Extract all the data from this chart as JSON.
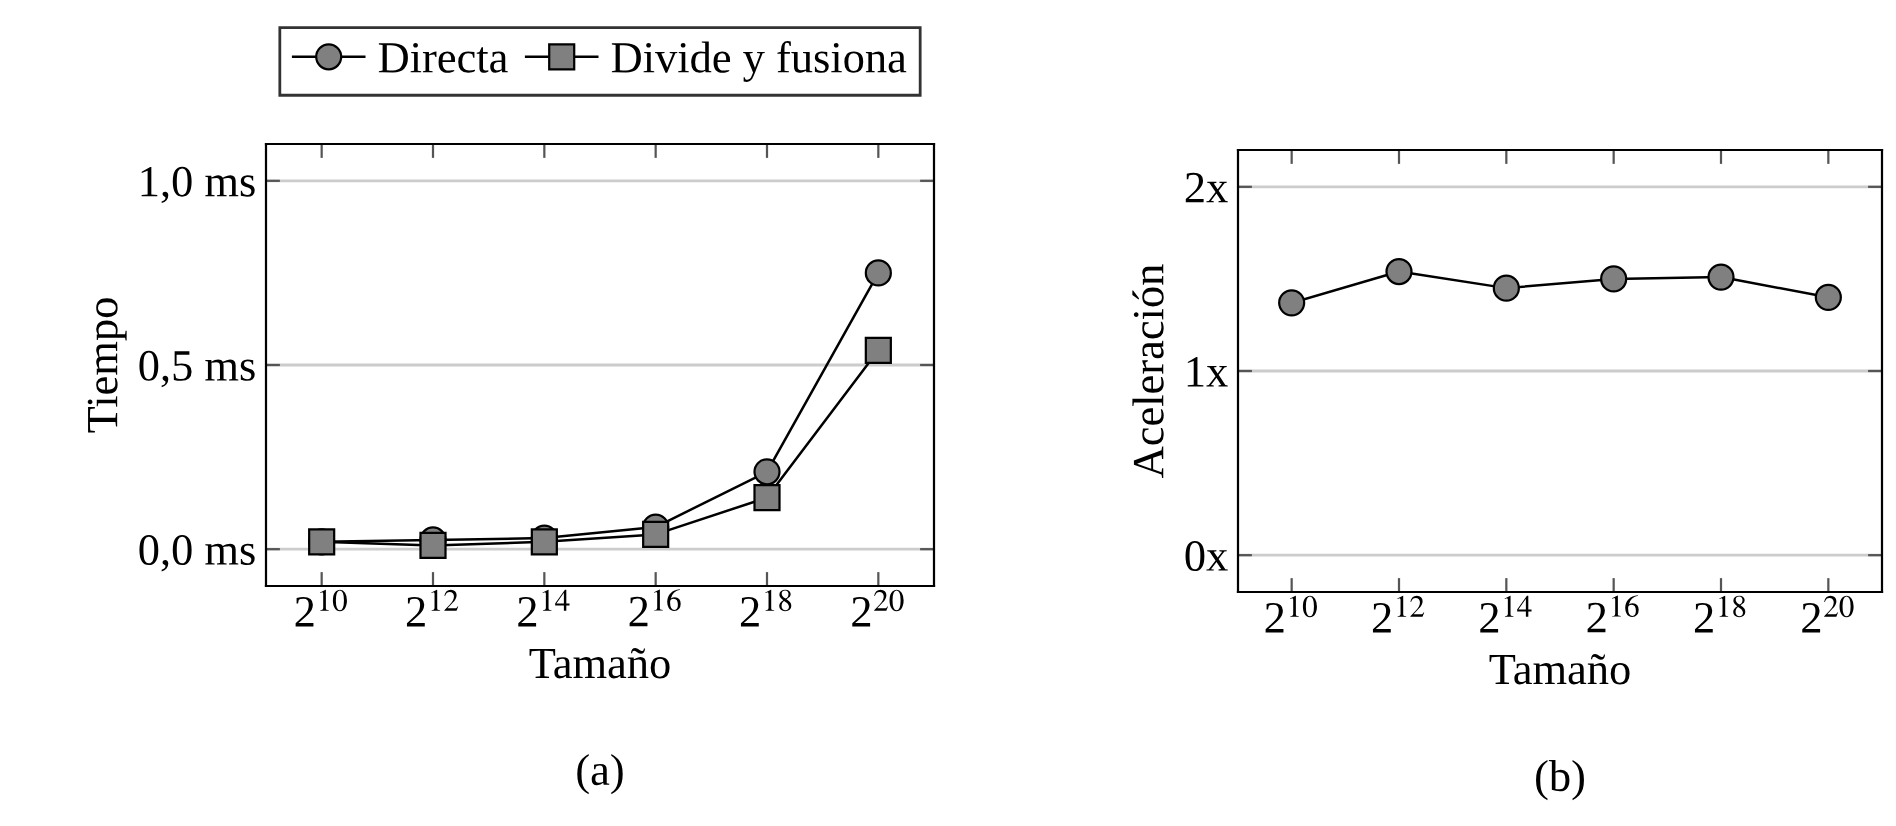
{
  "chart_data": [
    {
      "type": "line",
      "categories": [
        "2$^{10}$",
        "2$^{12}$",
        "2$^{14}$",
        "2$^{16}$",
        "2$^{18}$",
        "2$^{20}$"
      ],
      "xlabel": "Tamaño",
      "ylabel": "Tiempo",
      "ylim": [
        -0.1,
        1.1
      ],
      "yticks": [
        {
          "value": 0,
          "label": "0,0 ms"
        },
        {
          "value": 0.5,
          "label": "0,5 ms"
        },
        {
          "value": 1,
          "label": "1,0 ms"
        }
      ],
      "grid": "y",
      "legend": "top",
      "annotations": [
        "(a)"
      ],
      "series": [
        {
          "name": "Directa",
          "color": "#808080",
          "marker": "circle",
          "values": [
            0.02,
            0.025,
            0.03,
            0.06,
            0.21,
            0.75
          ]
        },
        {
          "name": "Divide y fusiona",
          "color": "#808080",
          "marker": "square",
          "values": [
            0.02,
            0.01,
            0.02,
            0.04,
            0.14,
            0.54
          ]
        }
      ]
    },
    {
      "type": "line",
      "categories": [
        "2$^{10}$",
        "2$^{12}$",
        "2$^{14}$",
        "2$^{16}$",
        "2$^{18}$",
        "2$^{20}$"
      ],
      "xlabel": "Tamaño",
      "ylabel": "Aceleración",
      "ylim": [
        -0.2,
        2.2
      ],
      "yticks": [
        {
          "value": 0,
          "label": "0x"
        },
        {
          "value": 1,
          "label": "1x"
        },
        {
          "value": 2,
          "label": "2x"
        }
      ],
      "grid": "y",
      "annotations": [
        "(b)"
      ],
      "series": [
        {
          "color": "#808080",
          "marker": "circle",
          "values": [
            1.37,
            1.54,
            1.45,
            1.5,
            1.51,
            1.4
          ]
        }
      ]
    }
  ]
}
